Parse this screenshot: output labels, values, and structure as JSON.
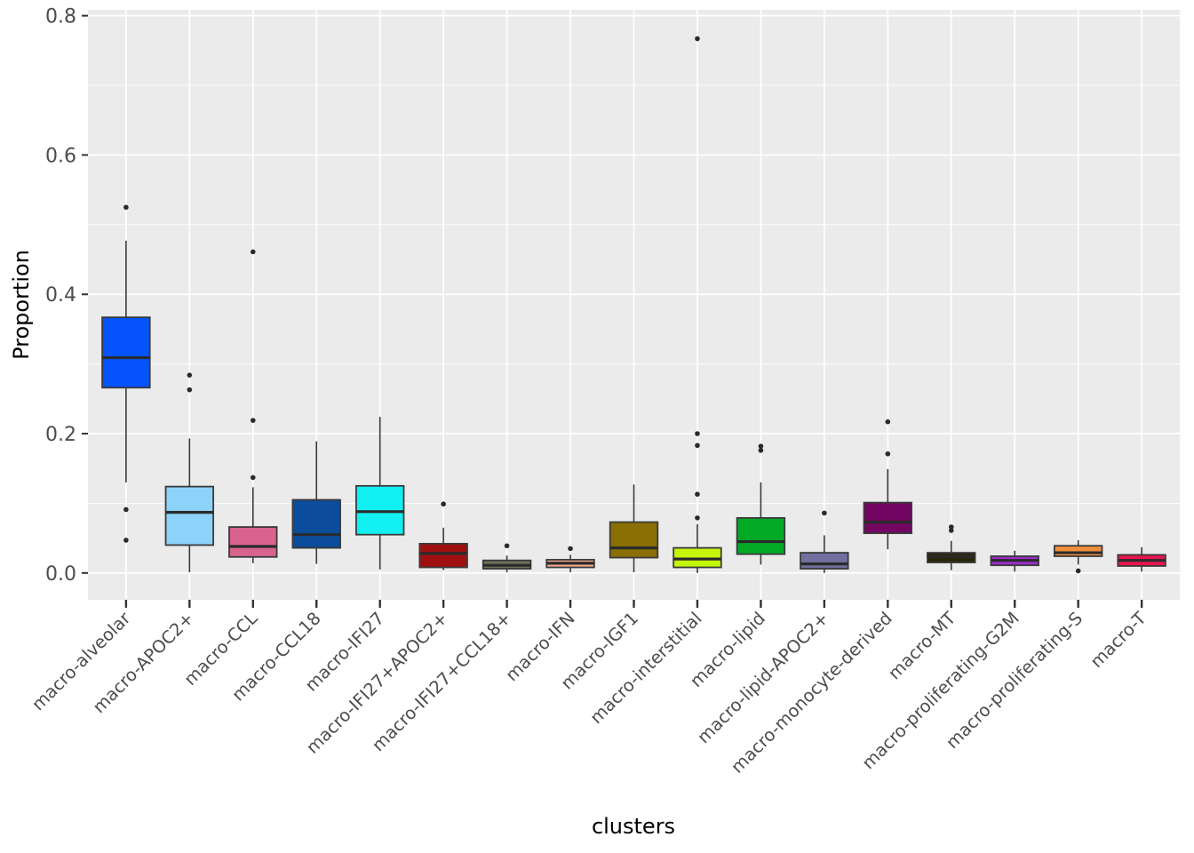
{
  "chart_data": {
    "type": "boxplot",
    "title": "",
    "xlabel": "clusters",
    "ylabel": "Proportion",
    "ylim": [
      -0.0385,
      0.8085
    ],
    "yticks": [
      0.0,
      0.2,
      0.4,
      0.6,
      0.8
    ],
    "ytick_labels": [
      "0.0",
      "0.2",
      "0.4",
      "0.6",
      "0.8"
    ],
    "yticks_minor": [
      0.1,
      0.3,
      0.5,
      0.7
    ],
    "grid": true,
    "legend": "none",
    "colors": {
      "panel_bg": "#EBEBEB",
      "grid": "#FFFFFF",
      "box_outline": "#3A3A3A",
      "median": "#2B2B2B",
      "whisker": "#3A3A3A",
      "outlier": "#2A2A2A",
      "axis_text": "#4D4D4D",
      "axis_title": "#000000",
      "tick_mark": "#333333"
    },
    "boxes": [
      {
        "category": "macro-alveolar",
        "color": "#0453FB",
        "whisker_low": 0.13,
        "q1": 0.266,
        "median": 0.309,
        "q3": 0.367,
        "whisker_high": 0.477,
        "outliers": [
          0.047,
          0.091,
          0.525
        ]
      },
      {
        "category": "macro-APOC2+",
        "color": "#8DD2F8",
        "whisker_low": 0.001,
        "q1": 0.04,
        "median": 0.087,
        "q3": 0.124,
        "whisker_high": 0.193,
        "outliers": [
          0.263,
          0.284
        ]
      },
      {
        "category": "macro-CCL",
        "color": "#D9638F",
        "whisker_low": 0.014,
        "q1": 0.023,
        "median": 0.038,
        "q3": 0.066,
        "whisker_high": 0.123,
        "outliers": [
          0.137,
          0.219,
          0.461
        ]
      },
      {
        "category": "macro-CCL18",
        "color": "#0B4C9C",
        "whisker_low": 0.013,
        "q1": 0.036,
        "median": 0.055,
        "q3": 0.105,
        "whisker_high": 0.189,
        "outliers": []
      },
      {
        "category": "macro-IFI27",
        "color": "#13F0F3",
        "whisker_low": 0.005,
        "q1": 0.055,
        "median": 0.088,
        "q3": 0.125,
        "whisker_high": 0.224,
        "outliers": []
      },
      {
        "category": "macro-IFI27+APOC2+",
        "color": "#A01010",
        "whisker_low": 0.004,
        "q1": 0.008,
        "median": 0.028,
        "q3": 0.042,
        "whisker_high": 0.065,
        "outliers": [
          0.099
        ]
      },
      {
        "category": "macro-IFI27+CCL18+",
        "color": "#70705A",
        "whisker_low": 0.001,
        "q1": 0.006,
        "median": 0.011,
        "q3": 0.018,
        "whisker_high": 0.025,
        "outliers": [
          0.039
        ]
      },
      {
        "category": "macro-IFN",
        "color": "#F5A98E",
        "whisker_low": 0.001,
        "q1": 0.008,
        "median": 0.014,
        "q3": 0.019,
        "whisker_high": 0.026,
        "outliers": [
          0.035
        ]
      },
      {
        "category": "macro-IGF1",
        "color": "#8A6F04",
        "whisker_low": 0.001,
        "q1": 0.022,
        "median": 0.036,
        "q3": 0.073,
        "whisker_high": 0.127,
        "outliers": []
      },
      {
        "category": "macro-interstitial",
        "color": "#C4F70B",
        "whisker_low": 0.0,
        "q1": 0.008,
        "median": 0.02,
        "q3": 0.036,
        "whisker_high": 0.07,
        "outliers": [
          0.079,
          0.113,
          0.183,
          0.2,
          0.767
        ]
      },
      {
        "category": "macro-lipid",
        "color": "#03AA26",
        "whisker_low": 0.012,
        "q1": 0.027,
        "median": 0.045,
        "q3": 0.079,
        "whisker_high": 0.13,
        "outliers": [
          0.176,
          0.182
        ]
      },
      {
        "category": "macro-lipid-APOC2+",
        "color": "#726E9D",
        "whisker_low": 0.0,
        "q1": 0.006,
        "median": 0.013,
        "q3": 0.029,
        "whisker_high": 0.054,
        "outliers": [
          0.086
        ]
      },
      {
        "category": "macro-monocyte-derived",
        "color": "#730563",
        "whisker_low": 0.034,
        "q1": 0.057,
        "median": 0.073,
        "q3": 0.101,
        "whisker_high": 0.149,
        "outliers": [
          0.171,
          0.217
        ]
      },
      {
        "category": "macro-MT",
        "color": "#282609",
        "whisker_low": 0.004,
        "q1": 0.015,
        "median": 0.024,
        "q3": 0.029,
        "whisker_high": 0.046,
        "outliers": [
          0.061,
          0.066
        ]
      },
      {
        "category": "macro-proliferating-G2M",
        "color": "#9B2DC9",
        "whisker_low": 0.002,
        "q1": 0.011,
        "median": 0.018,
        "q3": 0.024,
        "whisker_high": 0.032,
        "outliers": []
      },
      {
        "category": "macro-proliferating-S",
        "color": "#F1903C",
        "whisker_low": 0.012,
        "q1": 0.024,
        "median": 0.029,
        "q3": 0.039,
        "whisker_high": 0.047,
        "outliers": [
          0.003
        ]
      },
      {
        "category": "macro-T",
        "color": "#E91550",
        "whisker_low": 0.002,
        "q1": 0.01,
        "median": 0.018,
        "q3": 0.026,
        "whisker_high": 0.037,
        "outliers": []
      }
    ]
  }
}
